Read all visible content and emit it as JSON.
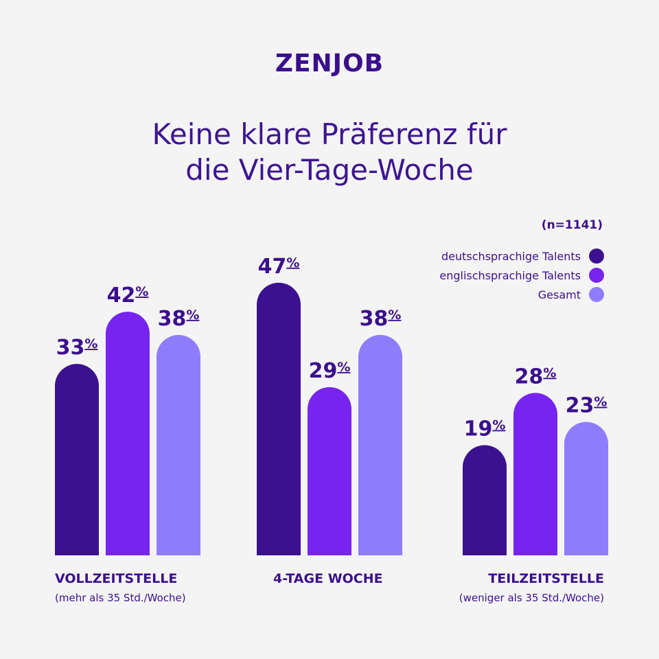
{
  "brand": "ZENJOB",
  "title_lines": [
    "Keine klare Präferenz für",
    "die Vier-Tage-Woche"
  ],
  "sample_note": "(n=1141)",
  "colors": {
    "deutschsprachige": "#3c1190",
    "englischsprachige": "#7824f0",
    "gesamt": "#8f7cfc",
    "text": "#3b0f8c",
    "background": "#f4f4f4"
  },
  "chart_data": {
    "type": "bar",
    "unit": "%",
    "categories": [
      "VOLLZEITSTELLE",
      "4-TAGE WOCHE",
      "TEILZEITSTELLE"
    ],
    "category_subtitles": [
      "(mehr als 35 Std./Woche)",
      "",
      "(weniger als 35 Std./Woche)"
    ],
    "series": [
      {
        "name": "deutschsprachige Talents",
        "values": [
          33,
          47,
          19
        ]
      },
      {
        "name": "englischsprachige Talents",
        "values": [
          42,
          29,
          28
        ]
      },
      {
        "name": "Gesamt",
        "values": [
          38,
          38,
          23
        ]
      }
    ],
    "legend_position": "top-right",
    "grid": false,
    "ylim": [
      0,
      50
    ]
  }
}
